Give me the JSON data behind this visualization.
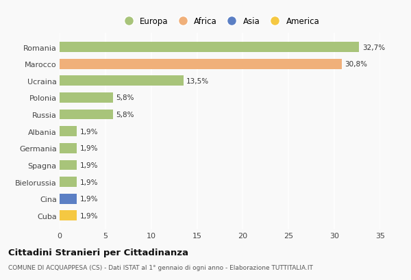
{
  "categories": [
    "Cuba",
    "Cina",
    "Bielorussia",
    "Spagna",
    "Germania",
    "Albania",
    "Russia",
    "Polonia",
    "Ucraina",
    "Marocco",
    "Romania"
  ],
  "values": [
    1.9,
    1.9,
    1.9,
    1.9,
    1.9,
    1.9,
    5.8,
    5.8,
    13.5,
    30.8,
    32.7
  ],
  "colors": [
    "#f5c842",
    "#5b7fc4",
    "#a8c47a",
    "#a8c47a",
    "#a8c47a",
    "#a8c47a",
    "#a8c47a",
    "#a8c47a",
    "#a8c47a",
    "#f0b07a",
    "#a8c47a"
  ],
  "labels": [
    "1,9%",
    "1,9%",
    "1,9%",
    "1,9%",
    "1,9%",
    "1,9%",
    "5,8%",
    "5,8%",
    "13,5%",
    "30,8%",
    "32,7%"
  ],
  "legend_labels": [
    "Europa",
    "Africa",
    "Asia",
    "America"
  ],
  "legend_colors": [
    "#a8c47a",
    "#f0b07a",
    "#5b7fc4",
    "#f5c842"
  ],
  "title": "Cittadini Stranieri per Cittadinanza",
  "subtitle": "COMUNE DI ACQUAPPESA (CS) - Dati ISTAT al 1° gennaio di ogni anno - Elaborazione TUTTITALIA.IT",
  "xlim": [
    0,
    35
  ],
  "xticks": [
    0,
    5,
    10,
    15,
    20,
    25,
    30,
    35
  ],
  "background_color": "#f9f9f9",
  "grid_color": "#ffffff",
  "bar_height": 0.6
}
